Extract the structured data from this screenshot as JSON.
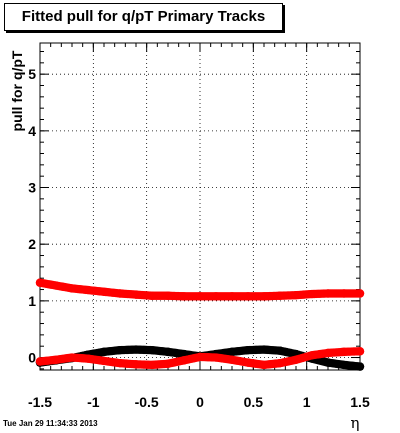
{
  "title": "Fitted pull for q/pT  Primary Tracks",
  "timestamp": "Tue Jan 29 11:34:33 2013",
  "chart_data": {
    "type": "scatter",
    "title": "Fitted pull for q/pT  Primary Tracks",
    "xlabel": "η",
    "ylabel": "pull for q/pT",
    "xlim": [
      -1.5,
      1.5
    ],
    "ylim": [
      -0.22,
      5.55
    ],
    "xticks": [
      -1.5,
      -1,
      -0.5,
      0,
      0.5,
      1,
      1.5
    ],
    "xtick_labels": [
      "-1.5",
      "-1",
      "-0.5",
      "0",
      "0.5",
      "1",
      "1.5"
    ],
    "yticks": [
      0,
      1,
      2,
      3,
      4,
      5
    ],
    "ytick_labels": [
      "0",
      "1",
      "2",
      "3",
      "4",
      "5"
    ],
    "grid": true,
    "series": [
      {
        "color": "#ff0000",
        "x": [
          -1.5,
          -1.35,
          -1.2,
          -1.05,
          -0.9,
          -0.75,
          -0.6,
          -0.45,
          -0.3,
          -0.15,
          0,
          0.15,
          0.3,
          0.45,
          0.6,
          0.75,
          0.9,
          1.05,
          1.2,
          1.35,
          1.5
        ],
        "y": [
          1.32,
          1.27,
          1.22,
          1.19,
          1.16,
          1.13,
          1.11,
          1.09,
          1.09,
          1.08,
          1.08,
          1.08,
          1.08,
          1.08,
          1.08,
          1.09,
          1.1,
          1.12,
          1.13,
          1.13,
          1.13
        ]
      },
      {
        "color": "#000000",
        "x": [
          -1.5,
          -1.35,
          -1.2,
          -1.05,
          -0.9,
          -0.75,
          -0.6,
          -0.45,
          -0.3,
          -0.15,
          0,
          0.15,
          0.3,
          0.45,
          0.6,
          0.75,
          0.9,
          1.05,
          1.2,
          1.35,
          1.5
        ],
        "y": [
          -0.09,
          -0.05,
          -0.01,
          0.05,
          0.1,
          0.13,
          0.14,
          0.13,
          0.1,
          0.06,
          0.02,
          0.06,
          0.1,
          0.13,
          0.14,
          0.12,
          0.06,
          -0.02,
          -0.09,
          -0.13,
          -0.16
        ]
      },
      {
        "color": "#ff0000",
        "x": [
          -1.5,
          -1.35,
          -1.2,
          -1.05,
          -0.9,
          -0.75,
          -0.6,
          -0.45,
          -0.3,
          -0.15,
          0,
          0.15,
          0.3,
          0.45,
          0.6,
          0.75,
          0.9,
          1.05,
          1.2,
          1.35,
          1.5
        ],
        "y": [
          -0.07,
          -0.04,
          0.0,
          -0.02,
          -0.06,
          -0.1,
          -0.12,
          -0.13,
          -0.11,
          -0.05,
          0.01,
          0.0,
          -0.04,
          -0.09,
          -0.13,
          -0.1,
          -0.04,
          0.04,
          0.08,
          0.1,
          0.11
        ]
      }
    ]
  }
}
